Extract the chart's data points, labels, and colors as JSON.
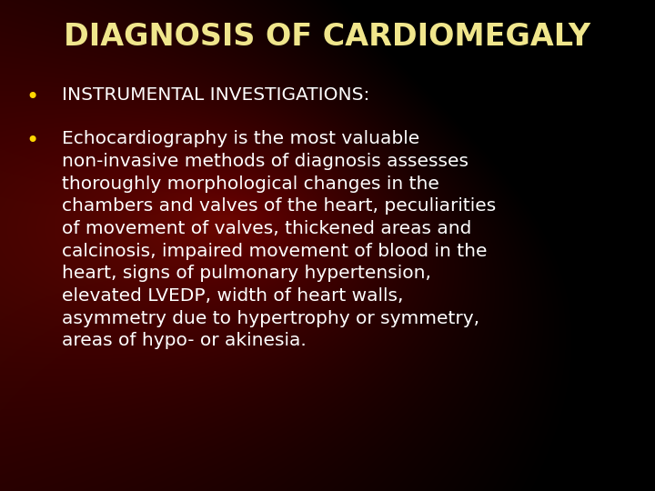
{
  "title": "DIAGNOSIS OF CARDIOMEGALY",
  "title_color": "#F0E68C",
  "title_fontsize": 24,
  "title_fontweight": "bold",
  "bullet_color": "#FFD700",
  "bullet_char": "•",
  "text_color": "#FFFFFF",
  "text_fontsize": 14.5,
  "bullet1": "INSTRUMENTAL INVESTIGATIONS:",
  "bullet2_lines": [
    "Echocardiography is the most valuable",
    "non-invasive methods of diagnosis assesses",
    "thoroughly morphological changes in the",
    "chambers and valves of the heart, peculiarities",
    "of movement of valves, thickened areas and",
    "calcinosis, impaired movement of blood in the",
    "heart, signs of pulmonary hypertension,",
    "elevated LVEDP, width of heart walls,",
    "asymmetry due to hypertrophy or symmetry,",
    "areas of hypo- or akinesia."
  ],
  "figwidth": 7.2,
  "figheight": 5.4,
  "dpi": 100
}
